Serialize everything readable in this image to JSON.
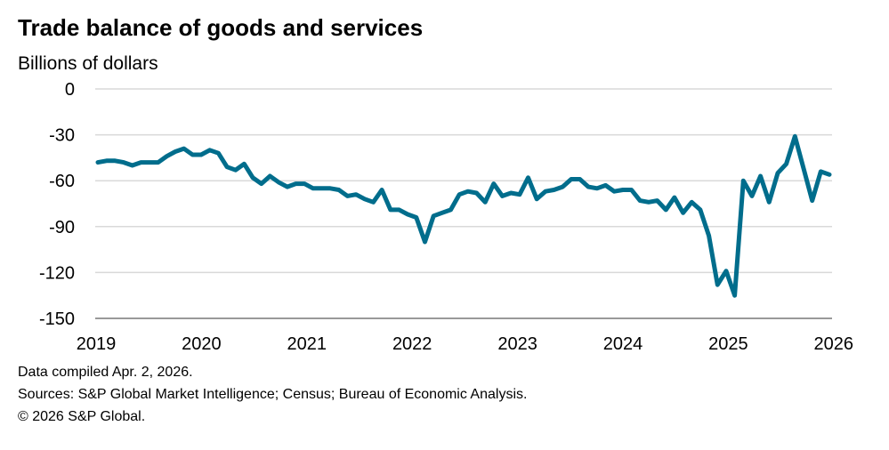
{
  "chart_data": {
    "type": "line",
    "title": "Trade balance of goods and services",
    "subtitle": "Billions of dollars",
    "xlabel": "",
    "ylabel": "",
    "ylim": [
      -150,
      0
    ],
    "yticks": [
      "0",
      "-30",
      "-60",
      "-90",
      "-120",
      "-150"
    ],
    "xticks": [
      "2019",
      "2020",
      "2021",
      "2022",
      "2023",
      "2024",
      "2025",
      "2026"
    ],
    "x_start": "2019-01",
    "x_end": "2026-02",
    "frequency": "monthly",
    "grid": true,
    "line_color": "#006d8c",
    "series": [
      {
        "values": [
          -48,
          -47,
          -47,
          -48,
          -50,
          -48,
          -48,
          -48,
          -44,
          -41,
          -39,
          -43,
          -43,
          -40,
          -42,
          -51,
          -53,
          -49,
          -58,
          -62,
          -57,
          -61,
          -64,
          -62,
          -62,
          -65,
          -65,
          -65,
          -66,
          -70,
          -69,
          -72,
          -74,
          -66,
          -79,
          -79,
          -82,
          -84,
          -100,
          -83,
          -81,
          -79,
          -69,
          -67,
          -68,
          -74,
          -62,
          -70,
          -68,
          -69,
          -58,
          -72,
          -67,
          -66,
          -64,
          -59,
          -59,
          -64,
          -65,
          -63,
          -67,
          -66,
          -66,
          -73,
          -74,
          -73,
          -79,
          -71,
          -81,
          -74,
          -79,
          -96,
          -128,
          -119,
          -135,
          -60,
          -70,
          -57,
          -74,
          -55,
          -49,
          -31,
          -52,
          -73,
          -54,
          -56
        ]
      }
    ]
  },
  "footer": {
    "compiled": "Data compiled Apr. 2, 2026.",
    "sources": "Sources: S&P Global Market Intelligence;  Census; Bureau of Economic Analysis.",
    "copyright": "© 2026 S&P Global."
  }
}
